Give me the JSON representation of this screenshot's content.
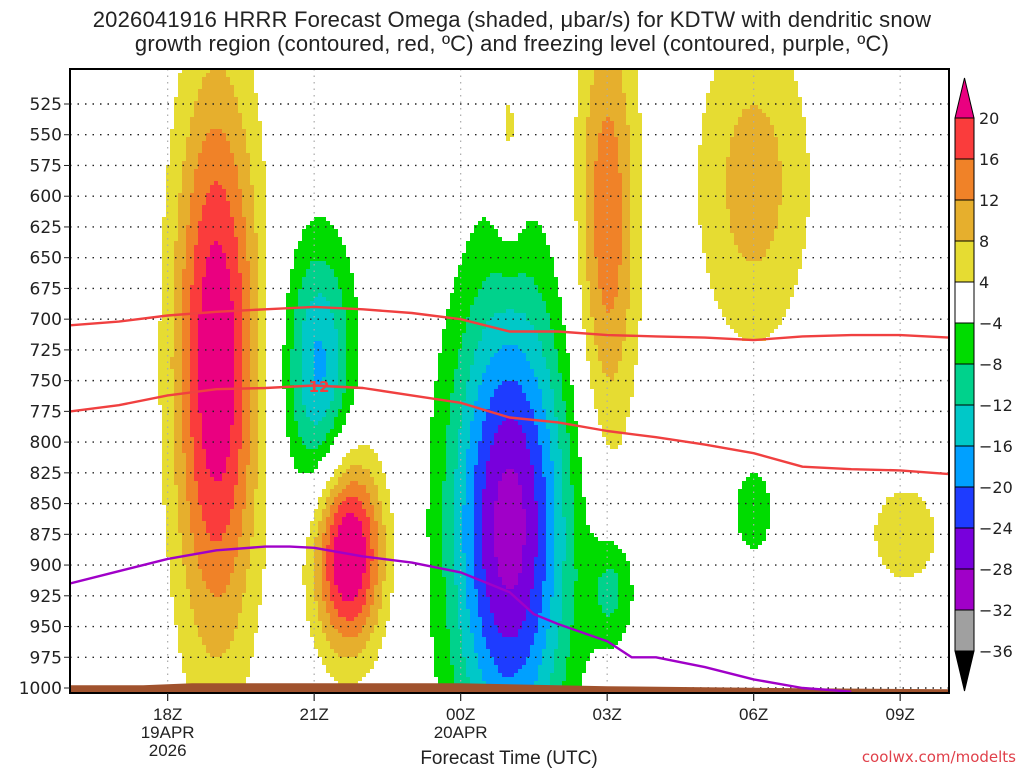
{
  "chart_data": {
    "type": "heatmap",
    "title_lines": [
      "2026041916 HRRR Forecast Omega (shaded, μbar/s) for KDTW with dendritic snow",
      "growth region (contoured, red, ºC) and freezing level (contoured, purple, ºC)"
    ],
    "xlabel": "Forecast Time (UTC)",
    "ylabel": "",
    "credit": "coolwx.com/modelts",
    "x_range_hours": [
      -2.0,
      16.0
    ],
    "x_ticks": [
      {
        "hour": 0,
        "lines": [
          "18Z",
          "19APR",
          "2026"
        ]
      },
      {
        "hour": 3,
        "lines": [
          "21Z"
        ]
      },
      {
        "hour": 6,
        "lines": [
          "00Z",
          "20APR"
        ]
      },
      {
        "hour": 9,
        "lines": [
          "03Z"
        ]
      },
      {
        "hour": 12,
        "lines": [
          "06Z"
        ]
      },
      {
        "hour": 15,
        "lines": [
          "09Z"
        ]
      }
    ],
    "y_axis": {
      "type": "pressure_hPa",
      "range": [
        505,
        1010
      ],
      "inverted": true
    },
    "y_ticks": [
      525,
      550,
      575,
      600,
      625,
      650,
      675,
      700,
      725,
      750,
      775,
      800,
      825,
      850,
      875,
      900,
      925,
      950,
      975,
      1000
    ],
    "grid": true,
    "colorbar": {
      "placement": "right",
      "levels": [
        -36,
        -32,
        -28,
        -24,
        -20,
        -16,
        -12,
        -8,
        -4,
        4,
        8,
        12,
        16,
        20
      ],
      "tick_labels": [
        "20",
        "16",
        "12",
        "8",
        "4",
        "−4",
        "−8",
        "−12",
        "−16",
        "−20",
        "−24",
        "−28",
        "−32",
        "−36"
      ],
      "bins": [
        {
          "range": "> 20",
          "color": "#ea0080"
        },
        {
          "range": "16 to 20",
          "color": "#fa3c3c"
        },
        {
          "range": "12 to 16",
          "color": "#f08228"
        },
        {
          "range": "8 to 12",
          "color": "#e6af2d"
        },
        {
          "range": "4 to 8",
          "color": "#e6dc32"
        },
        {
          "range": "-4 to 4",
          "color": "#ffffff"
        },
        {
          "range": "-8 to -4",
          "color": "#00dc00"
        },
        {
          "range": "-12 to -8",
          "color": "#00d28c"
        },
        {
          "range": "-16 to -12",
          "color": "#00c8c8"
        },
        {
          "range": "-20 to -16",
          "color": "#00a0ff"
        },
        {
          "range": "-24 to -20",
          "color": "#1e3cff"
        },
        {
          "range": "-28 to -24",
          "color": "#7800dc"
        },
        {
          "range": "-32 to -28",
          "color": "#a000c8"
        },
        {
          "range": "-36 to -32",
          "color": "#a0a0a0"
        },
        {
          "range": "< -36",
          "color": "#000000"
        }
      ]
    },
    "omega_features": [
      {
        "name": "ascent-core-18z",
        "center_hour": 1.0,
        "center_hPa": 735,
        "peak": 24,
        "half_width_hours": 1.1,
        "half_depth_hPa": 290
      },
      {
        "name": "ascent-core-22z",
        "center_hour": 3.7,
        "center_hPa": 890,
        "peak": 26,
        "half_width_hours": 0.9,
        "half_depth_hPa": 100
      },
      {
        "name": "descent-21z",
        "center_hour": 3.1,
        "center_hPa": 740,
        "peak": -17,
        "half_width_hours": 0.9,
        "half_depth_hPa": 130
      },
      {
        "name": "descent-01z",
        "center_hour": 7.0,
        "center_hPa": 870,
        "peak": -30,
        "half_width_hours": 1.5,
        "half_depth_hPa": 240
      },
      {
        "name": "ascent-03z-column",
        "center_hour": 9.0,
        "center_hPa": 620,
        "peak": 15,
        "half_width_hours": 0.8,
        "half_depth_hPa": 230
      },
      {
        "name": "ascent-00z-sliver",
        "center_hour": 7.0,
        "center_hPa": 560,
        "peak": 6,
        "half_width_hours": 0.4,
        "half_depth_hPa": 110
      },
      {
        "name": "ascent-06z-column",
        "center_hour": 12.0,
        "center_hPa": 590,
        "peak": 10,
        "half_width_hours": 1.5,
        "half_depth_hPa": 170
      },
      {
        "name": "descent-03z-small",
        "center_hour": 9.1,
        "center_hPa": 920,
        "peak": -9,
        "half_width_hours": 0.6,
        "half_depth_hPa": 60
      },
      {
        "name": "descent-06z-small",
        "center_hour": 12.0,
        "center_hPa": 855,
        "peak": -7,
        "half_width_hours": 0.6,
        "half_depth_hPa": 55
      },
      {
        "name": "ascent-09z-blob",
        "center_hour": 15.1,
        "center_hPa": 875,
        "peak": 6,
        "half_width_hours": 1.2,
        "half_depth_hPa": 70
      }
    ],
    "series": [
      {
        "name": "dendritic-growth-upper (-12°C top)",
        "color": "#f04040",
        "x_hours": [
          -2.0,
          -1.0,
          0.0,
          1.0,
          2.0,
          3.0,
          4.0,
          5.0,
          6.0,
          7.0,
          8.0,
          9.0,
          10.0,
          11.0,
          12.0,
          13.0,
          14.0,
          15.0,
          16.0
        ],
        "y_hPa": [
          705,
          702,
          697,
          694,
          692,
          690,
          692,
          695,
          700,
          710,
          710,
          713,
          714,
          715,
          717,
          714,
          713,
          713,
          715
        ]
      },
      {
        "name": "dendritic-growth-lower (-12°C label)",
        "color": "#f04040",
        "label": "12",
        "label_at_hour": 3.1,
        "x_hours": [
          -2.0,
          -1.0,
          0.0,
          1.0,
          2.0,
          3.0,
          4.0,
          5.0,
          6.0,
          7.0,
          8.0,
          9.0,
          10.0,
          11.0,
          12.0,
          13.0,
          14.0,
          15.0,
          16.0
        ],
        "y_hPa": [
          775,
          770,
          762,
          757,
          756,
          754,
          756,
          762,
          768,
          780,
          784,
          791,
          796,
          802,
          809,
          820,
          822,
          823,
          826
        ]
      },
      {
        "name": "freezing-level (0°C)",
        "color": "#a000c8",
        "x_hours": [
          -2.0,
          -1.0,
          0.0,
          1.0,
          2.0,
          2.5,
          3.0,
          4.0,
          5.0,
          6.0,
          7.0,
          7.5,
          8.0,
          9.0,
          9.5,
          10.0,
          11.0,
          12.0,
          13.0,
          14.0
        ],
        "y_hPa": [
          915,
          905,
          895,
          888,
          885,
          885,
          886,
          893,
          898,
          906,
          922,
          940,
          948,
          962,
          975,
          975,
          983,
          993,
          1000,
          1003
        ]
      }
    ],
    "terrain": {
      "color": "#a0522d",
      "surface_hPa": 1001
    }
  }
}
